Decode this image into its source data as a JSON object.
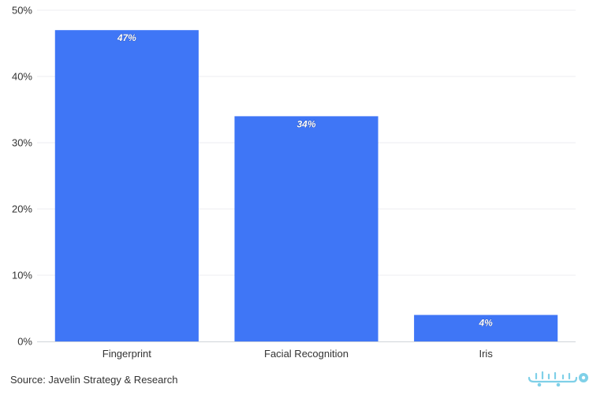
{
  "chart_data": {
    "type": "bar",
    "categories": [
      "Fingerprint",
      "Facial Recognition",
      "Iris"
    ],
    "values": [
      47,
      34,
      4
    ],
    "data_labels": [
      "47%",
      "34%",
      "4%"
    ],
    "ylim": [
      0,
      50
    ],
    "yticks": [
      0,
      10,
      20,
      30,
      40,
      50
    ],
    "ytick_labels": [
      "0%",
      "10%",
      "20%",
      "30%",
      "40%",
      "50%"
    ],
    "grid": true,
    "legend": "none",
    "bar_color": "#3f76f6",
    "grid_color": "#eceef2",
    "axis_color": "#d0d4da",
    "text_color": "#333333",
    "label_color": "#ffffff"
  },
  "footer": {
    "source": "Source: Javelin Strategy & Research"
  },
  "watermark": {
    "icon": "brand-logo-watermark",
    "color": "#7fd0e8"
  }
}
